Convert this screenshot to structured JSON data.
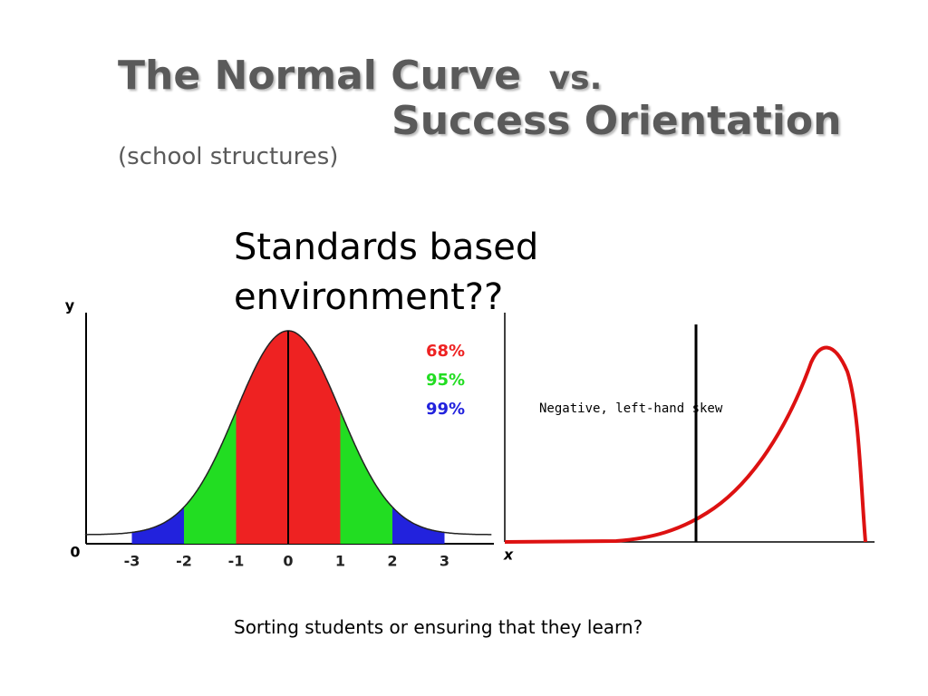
{
  "slide": {
    "title_line1": "The Normal Curve",
    "title_vs": "vs.",
    "title_line2": "Success Orientation",
    "subtitle": "(school structures)",
    "body_line1": "Standards based",
    "body_line2": "environment??",
    "caption": "Sorting students or ensuring that they learn?"
  },
  "normal_curve": {
    "y_label": "y",
    "origin_label": "0",
    "xticks": [
      -3,
      -2,
      -1,
      0,
      1,
      2,
      3
    ],
    "legend": [
      {
        "label": "68%",
        "color": "#ee2222"
      },
      {
        "label": "95%",
        "color": "#22dd22"
      },
      {
        "label": "99%",
        "color": "#2222dd"
      }
    ]
  },
  "skew_curve": {
    "label": "Negative, left-hand skew",
    "x_label": "x"
  }
}
